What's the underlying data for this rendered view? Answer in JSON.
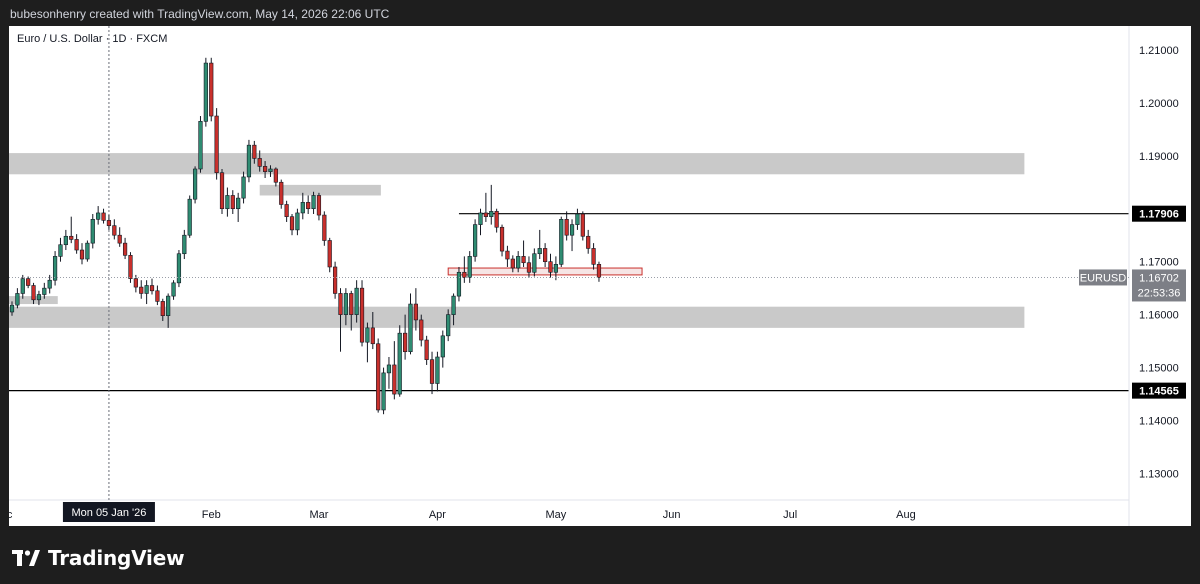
{
  "header": {
    "attribution": "bubesonhenry created with TradingView.com, May 14, 2026 22:06 UTC"
  },
  "footer": {
    "brand": "TradingView"
  },
  "chart_data": {
    "type": "candlestick",
    "title": "Euro / U.S. Dollar · 1D · FXCM",
    "symbol": "EURUSD",
    "y_ticks": [
      "1.21000",
      "1.20000",
      "1.19000",
      "1.17000",
      "1.16000",
      "1.15000",
      "1.14000",
      "1.13000"
    ],
    "y_tick_values": [
      1.21,
      1.2,
      1.19,
      1.17,
      1.16,
      1.15,
      1.14,
      1.13
    ],
    "x_ticks": [
      {
        "label": "ec",
        "idx": -1.0
      },
      {
        "label": "Feb",
        "idx": 37.0
      },
      {
        "label": "Mar",
        "idx": 57.0
      },
      {
        "label": "Apr",
        "idx": 79.0
      },
      {
        "label": "May",
        "idx": 101.0
      },
      {
        "label": "Jun",
        "idx": 122.5
      },
      {
        "label": "Jul",
        "idx": 144.5
      },
      {
        "label": "Aug",
        "idx": 166.0
      }
    ],
    "ylim": [
      1.125,
      1.2145
    ],
    "crosshair": {
      "label": "Mon 05 Jan '26",
      "idx": 18
    },
    "horizontal_lines": [
      {
        "value": 1.17906,
        "label": "1.17906",
        "color": "#000000",
        "from_idx": 83.0
      },
      {
        "value": 1.14565,
        "label": "1.14565",
        "color": "#000000",
        "from_idx": -1
      }
    ],
    "zones": [
      {
        "top": 1.1905,
        "bottom": 1.1865,
        "from_idx": -1,
        "to_idx": 188,
        "color": "#c9c9c9"
      },
      {
        "top": 1.1845,
        "bottom": 1.1825,
        "from_idx": 46,
        "to_idx": 68.5,
        "color": "#c9c9c9"
      },
      {
        "top": 1.1635,
        "bottom": 1.162,
        "from_idx": -1,
        "to_idx": 8.5,
        "color": "#c9c9c9"
      },
      {
        "top": 1.1615,
        "bottom": 1.1575,
        "from_idx": -1,
        "to_idx": 188,
        "color": "#c9c9c9"
      },
      {
        "top": 1.1688,
        "bottom": 1.1675,
        "from_idx": 81,
        "to_idx": 117,
        "color": "#f4dede",
        "stroke": "#c9302c"
      }
    ],
    "last_price": {
      "value": 1.16702,
      "label": "1.16702",
      "countdown": "22:53:36"
    },
    "candles": [
      [
        1.1605,
        1.1625,
        1.1598,
        1.1618
      ],
      [
        1.1618,
        1.165,
        1.1612,
        1.164
      ],
      [
        1.164,
        1.1675,
        1.163,
        1.1668
      ],
      [
        1.1668,
        1.1672,
        1.165,
        1.1655
      ],
      [
        1.1655,
        1.166,
        1.162,
        1.1628
      ],
      [
        1.1628,
        1.1645,
        1.1618,
        1.1638
      ],
      [
        1.1638,
        1.166,
        1.163,
        1.165
      ],
      [
        1.165,
        1.1675,
        1.164,
        1.1665
      ],
      [
        1.1665,
        1.172,
        1.1655,
        1.171
      ],
      [
        1.171,
        1.1745,
        1.17,
        1.1732
      ],
      [
        1.1732,
        1.176,
        1.1722,
        1.1748
      ],
      [
        1.1748,
        1.1785,
        1.1735,
        1.1742
      ],
      [
        1.1742,
        1.1752,
        1.1715,
        1.1722
      ],
      [
        1.1722,
        1.1735,
        1.1695,
        1.1705
      ],
      [
        1.1705,
        1.174,
        1.17,
        1.1735
      ],
      [
        1.1735,
        1.179,
        1.1725,
        1.178
      ],
      [
        1.178,
        1.1805,
        1.177,
        1.1792
      ],
      [
        1.1792,
        1.18,
        1.1772,
        1.1778
      ],
      [
        1.1778,
        1.1788,
        1.176,
        1.1768
      ],
      [
        1.1768,
        1.178,
        1.1742,
        1.175
      ],
      [
        1.175,
        1.1765,
        1.1728,
        1.1735
      ],
      [
        1.1735,
        1.1745,
        1.1705,
        1.1712
      ],
      [
        1.1712,
        1.1718,
        1.166,
        1.1668
      ],
      [
        1.1668,
        1.1675,
        1.1642,
        1.1652
      ],
      [
        1.1652,
        1.1665,
        1.163,
        1.164
      ],
      [
        1.164,
        1.1665,
        1.162,
        1.1655
      ],
      [
        1.1655,
        1.1668,
        1.1638,
        1.1645
      ],
      [
        1.1645,
        1.1655,
        1.1618,
        1.1625
      ],
      [
        1.1625,
        1.163,
        1.1588,
        1.1598
      ],
      [
        1.1598,
        1.164,
        1.1575,
        1.1635
      ],
      [
        1.1635,
        1.1665,
        1.1628,
        1.166
      ],
      [
        1.166,
        1.1722,
        1.1652,
        1.1715
      ],
      [
        1.1715,
        1.176,
        1.1705,
        1.175
      ],
      [
        1.175,
        1.1825,
        1.1745,
        1.1818
      ],
      [
        1.1818,
        1.188,
        1.181,
        1.1875
      ],
      [
        1.1875,
        1.1975,
        1.1868,
        1.1965
      ],
      [
        1.1965,
        1.2085,
        1.1955,
        1.2075
      ],
      [
        1.2075,
        1.2085,
        1.1965,
        1.1975
      ],
      [
        1.1975,
        1.199,
        1.1855,
        1.1868
      ],
      [
        1.1868,
        1.1875,
        1.179,
        1.18
      ],
      [
        1.18,
        1.184,
        1.1785,
        1.1825
      ],
      [
        1.1825,
        1.1835,
        1.179,
        1.18
      ],
      [
        1.18,
        1.183,
        1.1775,
        1.182
      ],
      [
        1.182,
        1.187,
        1.181,
        1.186
      ],
      [
        1.186,
        1.193,
        1.185,
        1.192
      ],
      [
        1.192,
        1.1928,
        1.1885,
        1.1895
      ],
      [
        1.1895,
        1.191,
        1.187,
        1.188
      ],
      [
        1.188,
        1.189,
        1.1858,
        1.187
      ],
      [
        1.187,
        1.1882,
        1.186,
        1.1875
      ],
      [
        1.1875,
        1.1878,
        1.1842,
        1.185
      ],
      [
        1.185,
        1.1855,
        1.18,
        1.1808
      ],
      [
        1.1808,
        1.1815,
        1.1775,
        1.1785
      ],
      [
        1.1785,
        1.179,
        1.175,
        1.176
      ],
      [
        1.176,
        1.18,
        1.175,
        1.1792
      ],
      [
        1.1792,
        1.183,
        1.178,
        1.1812
      ],
      [
        1.1812,
        1.1825,
        1.179,
        1.18
      ],
      [
        1.18,
        1.1832,
        1.179,
        1.1825
      ],
      [
        1.1825,
        1.183,
        1.1778,
        1.1788
      ],
      [
        1.1788,
        1.1795,
        1.173,
        1.174
      ],
      [
        1.174,
        1.1745,
        1.168,
        1.169
      ],
      [
        1.169,
        1.17,
        1.163,
        1.164
      ],
      [
        1.164,
        1.165,
        1.153,
        1.16
      ],
      [
        1.16,
        1.165,
        1.158,
        1.164
      ],
      [
        1.164,
        1.1645,
        1.157,
        1.16
      ],
      [
        1.16,
        1.1665,
        1.1585,
        1.165
      ],
      [
        1.165,
        1.1665,
        1.154,
        1.1548
      ],
      [
        1.1548,
        1.1585,
        1.151,
        1.1575
      ],
      [
        1.1575,
        1.1605,
        1.1535,
        1.1545
      ],
      [
        1.1545,
        1.1555,
        1.1415,
        1.142
      ],
      [
        1.142,
        1.15,
        1.1412,
        1.149
      ],
      [
        1.149,
        1.152,
        1.146,
        1.1505
      ],
      [
        1.1505,
        1.155,
        1.144,
        1.145
      ],
      [
        1.145,
        1.158,
        1.1445,
        1.1565
      ],
      [
        1.1565,
        1.16,
        1.1515,
        1.153
      ],
      [
        1.153,
        1.164,
        1.1525,
        1.162
      ],
      [
        1.162,
        1.165,
        1.157,
        1.159
      ],
      [
        1.159,
        1.16,
        1.154,
        1.1552
      ],
      [
        1.1552,
        1.156,
        1.1505,
        1.1515
      ],
      [
        1.1515,
        1.153,
        1.145,
        1.147
      ],
      [
        1.147,
        1.153,
        1.1455,
        1.152
      ],
      [
        1.152,
        1.157,
        1.15,
        1.156
      ],
      [
        1.156,
        1.161,
        1.155,
        1.16
      ],
      [
        1.16,
        1.164,
        1.158,
        1.1635
      ],
      [
        1.1635,
        1.169,
        1.1625,
        1.168
      ],
      [
        1.168,
        1.171,
        1.166,
        1.167
      ],
      [
        1.167,
        1.172,
        1.166,
        1.171
      ],
      [
        1.171,
        1.178,
        1.17,
        1.177
      ],
      [
        1.177,
        1.18,
        1.175,
        1.1792
      ],
      [
        1.1792,
        1.183,
        1.1775,
        1.1785
      ],
      [
        1.1785,
        1.1845,
        1.177,
        1.1795
      ],
      [
        1.1795,
        1.18,
        1.1755,
        1.1765
      ],
      [
        1.1765,
        1.177,
        1.171,
        1.172
      ],
      [
        1.172,
        1.173,
        1.169,
        1.1705
      ],
      [
        1.1705,
        1.1712,
        1.168,
        1.1688
      ],
      [
        1.1688,
        1.172,
        1.168,
        1.171
      ],
      [
        1.171,
        1.174,
        1.169,
        1.1698
      ],
      [
        1.1698,
        1.171,
        1.167,
        1.168
      ],
      [
        1.168,
        1.1725,
        1.1672,
        1.1715
      ],
      [
        1.1715,
        1.176,
        1.1705,
        1.1725
      ],
      [
        1.1725,
        1.1735,
        1.169,
        1.17
      ],
      [
        1.17,
        1.1715,
        1.167,
        1.168
      ],
      [
        1.168,
        1.171,
        1.1665,
        1.1695
      ],
      [
        1.1695,
        1.1785,
        1.169,
        1.178
      ],
      [
        1.178,
        1.1795,
        1.174,
        1.175
      ],
      [
        1.175,
        1.178,
        1.172,
        1.177
      ],
      [
        1.177,
        1.18,
        1.176,
        1.179
      ],
      [
        1.179,
        1.1795,
        1.174,
        1.1748
      ],
      [
        1.1748,
        1.176,
        1.1715,
        1.1725
      ],
      [
        1.1725,
        1.1735,
        1.1685,
        1.1695
      ],
      [
        1.1695,
        1.17,
        1.1662,
        1.167
      ]
    ]
  }
}
